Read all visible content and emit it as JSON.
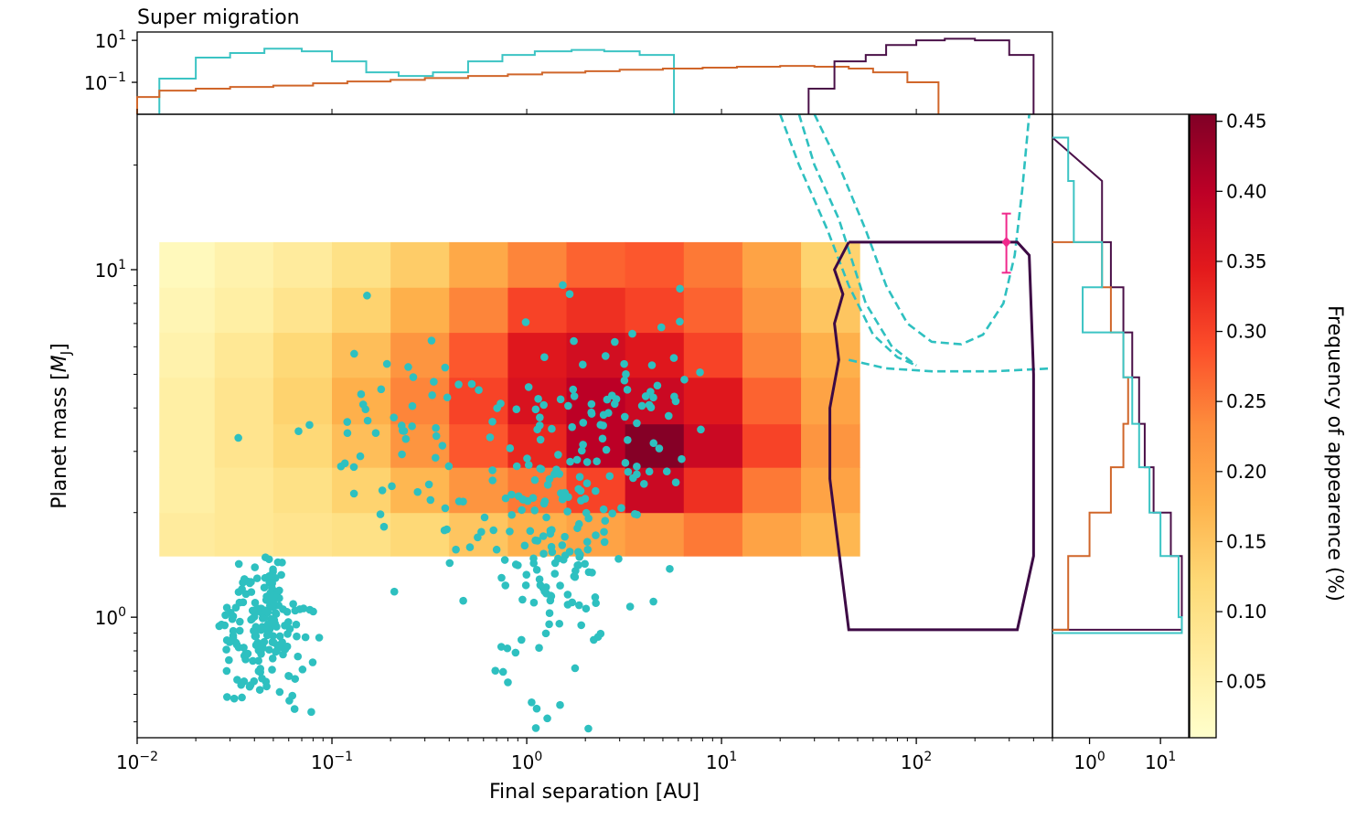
{
  "chart_data": {
    "type": "scatter",
    "title": "Super migration",
    "xlabel": "Final separation [AU]",
    "ylabel": "Planet mass [M_J]",
    "ylabel_parts": {
      "main": "Planet mass [",
      "italic": "M",
      "sub": "J",
      "end": "]"
    },
    "colorbar_label": "Frequency of appearence (%)",
    "xscale": "log",
    "yscale": "log",
    "xlim": [
      0.01,
      500
    ],
    "ylim": [
      0.45,
      28
    ],
    "xticks": [
      {
        "v": 0.01,
        "b": "10",
        "e": "−2"
      },
      {
        "v": 0.1,
        "b": "10",
        "e": "−1"
      },
      {
        "v": 1,
        "b": "10",
        "e": "0"
      },
      {
        "v": 10,
        "b": "10",
        "e": "1"
      },
      {
        "v": 100,
        "b": "10",
        "e": "2"
      }
    ],
    "yticks": [
      {
        "v": 1,
        "b": "10",
        "e": "0"
      },
      {
        "v": 10,
        "b": "10",
        "e": "1"
      }
    ],
    "top_yticks": [
      {
        "v": 10,
        "b": "10",
        "e": "1"
      },
      {
        "v": 0.1,
        "b": "10",
        "e": "−1"
      }
    ],
    "right_xticks": [
      {
        "v": 1,
        "b": "10",
        "e": "0"
      },
      {
        "v": 10,
        "b": "10",
        "e": "1"
      }
    ],
    "colorbar": {
      "min": 0.01,
      "max": 0.455,
      "ticks": [
        "0.05",
        "0.10",
        "0.15",
        "0.20",
        "0.25",
        "0.30",
        "0.35",
        "0.40",
        "0.45"
      ]
    },
    "series": [
      {
        "name": "observed exoplanets",
        "kind": "scatter",
        "color": "#2ec0c0"
      },
      {
        "name": "simulated frequency",
        "kind": "heatmap",
        "colormap": "YlOrRd"
      },
      {
        "name": "simulated region outline",
        "kind": "polygon",
        "color": "#3d0a45"
      },
      {
        "name": "detection limits",
        "kind": "dashed-lines",
        "color": "#2ec0c0"
      },
      {
        "name": "target planet",
        "kind": "errorbar-point",
        "x": 290,
        "y": 12,
        "ylow": 9.8,
        "yhigh": 14.5,
        "color": "#f0288c"
      },
      {
        "name": "histogram cyan",
        "color": "#3cc4c4"
      },
      {
        "name": "histogram orange",
        "color": "#d0662a"
      },
      {
        "name": "histogram purple",
        "color": "#4a1048"
      }
    ],
    "outline_polygon": [
      [
        45,
        12
      ],
      [
        330,
        12
      ],
      [
        380,
        11
      ],
      [
        400,
        5
      ],
      [
        400,
        1.5
      ],
      [
        330,
        0.92
      ],
      [
        45,
        0.92
      ],
      [
        36,
        2.5
      ],
      [
        36,
        4
      ],
      [
        40,
        5.5
      ],
      [
        38,
        7
      ],
      [
        42,
        8.5
      ],
      [
        38,
        10
      ],
      [
        45,
        12
      ]
    ],
    "detection_curves": [
      [
        [
          30,
          28
        ],
        [
          40,
          20
        ],
        [
          55,
          13
        ],
        [
          70,
          9
        ],
        [
          90,
          7
        ],
        [
          120,
          6.2
        ],
        [
          170,
          6.1
        ],
        [
          220,
          6.5
        ],
        [
          280,
          8
        ],
        [
          320,
          11
        ],
        [
          350,
          17
        ],
        [
          380,
          28
        ]
      ],
      [
        [
          45,
          5.5
        ],
        [
          70,
          5.2
        ],
        [
          120,
          5.1
        ],
        [
          250,
          5.1
        ],
        [
          500,
          5.2
        ]
      ],
      [
        [
          20,
          28
        ],
        [
          25,
          20
        ],
        [
          35,
          13
        ],
        [
          45,
          9
        ],
        [
          60,
          6.5
        ],
        [
          80,
          5.6
        ],
        [
          100,
          5.3
        ]
      ],
      [
        [
          25,
          28
        ],
        [
          30,
          20
        ],
        [
          40,
          14
        ],
        [
          55,
          8
        ],
        [
          75,
          6
        ],
        [
          100,
          5.3
        ]
      ]
    ],
    "heatmap": [
      {
        "m": [
          1.5,
          2.0
        ],
        "v": [
          [
            0.07,
            0.08,
            0.09,
            0.1,
            0.12,
            0.15,
            0.18,
            0.2,
            0.22,
            0.25,
            0.2,
            0.17
          ]
        ]
      },
      {
        "m": [
          2.0,
          2.7
        ],
        "v": [
          [
            0.06,
            0.08,
            0.1,
            0.13,
            0.17,
            0.22,
            0.25,
            0.3,
            0.38,
            0.32,
            0.25,
            0.2
          ]
        ]
      },
      {
        "m": [
          2.7,
          3.6
        ],
        "v": [
          [
            0.06,
            0.09,
            0.12,
            0.16,
            0.22,
            0.28,
            0.33,
            0.4,
            0.45,
            0.38,
            0.3,
            0.22
          ]
        ]
      },
      {
        "m": [
          3.6,
          4.9
        ],
        "v": [
          [
            0.06,
            0.09,
            0.13,
            0.18,
            0.24,
            0.3,
            0.36,
            0.4,
            0.38,
            0.35,
            0.27,
            0.2
          ]
        ]
      },
      {
        "m": [
          4.9,
          6.6
        ],
        "v": [
          [
            0.05,
            0.08,
            0.12,
            0.16,
            0.22,
            0.28,
            0.35,
            0.37,
            0.35,
            0.3,
            0.24,
            0.18
          ]
        ]
      },
      {
        "m": [
          6.6,
          8.9
        ],
        "v": [
          [
            0.04,
            0.06,
            0.09,
            0.13,
            0.18,
            0.24,
            0.3,
            0.32,
            0.3,
            0.27,
            0.22,
            0.15
          ]
        ]
      },
      {
        "m": [
          8.9,
          12.0
        ],
        "v": [
          [
            0.03,
            0.05,
            0.07,
            0.1,
            0.14,
            0.19,
            0.24,
            0.27,
            0.28,
            0.25,
            0.2,
            0.13
          ]
        ]
      }
    ]
  }
}
